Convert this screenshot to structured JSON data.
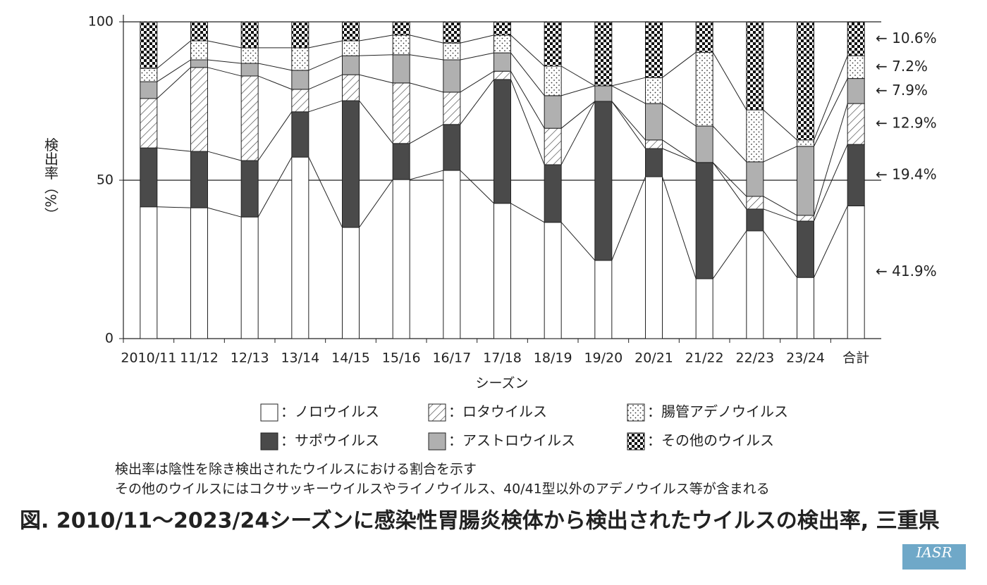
{
  "chart_data": {
    "type": "stacked_bar",
    "title": "図. 2010/11〜2023/24シーズンに感染性胃腸炎検体から検出されたウイルスの検出率, 三重県",
    "x_label": "シーズン",
    "y_label": "検出率（%）",
    "notes": [
      "検出率は陰性を除き検出されたウイルスにおける割合を示す",
      "その他のウイルスにはコクサッキーウイルスやライノウイルス、40/41型以外のアデノウイルス等が含まれる"
    ],
    "categories": [
      "2010/11",
      "11/12",
      "12/13",
      "13/14",
      "14/15",
      "15/16",
      "16/17",
      "17/18",
      "18/19",
      "19/20",
      "20/21",
      "21/22",
      "22/23",
      "23/24",
      "合計"
    ],
    "series": [
      {
        "name": "：ノロウイルス",
        "color": "#ffffff",
        "pattern": "solid",
        "values": [
          41.6,
          41.3,
          38.4,
          57.3,
          35.1,
          50.2,
          53.1,
          42.7,
          36.7,
          24.7,
          51.1,
          18.9,
          34.0,
          19.3,
          41.9
        ],
        "value_labels": [
          null,
          null,
          null,
          null,
          null,
          null,
          null,
          null,
          null,
          null,
          null,
          null,
          null,
          null,
          "← 41.9%"
        ]
      },
      {
        "name": "：サポウイルス",
        "color": "#4a4a4a",
        "pattern": "solid",
        "values": [
          18.6,
          17.8,
          17.8,
          14.3,
          40.0,
          11.4,
          14.5,
          39.1,
          18.2,
          50.2,
          8.9,
          36.7,
          6.9,
          17.8,
          19.4
        ],
        "value_labels": [
          null,
          null,
          null,
          null,
          null,
          null,
          null,
          null,
          null,
          null,
          null,
          null,
          null,
          null,
          "← 19.4%"
        ]
      },
      {
        "name": "：ロタウイルス",
        "color": "#ffffff",
        "pattern": "hatch",
        "values": [
          15.6,
          26.5,
          26.7,
          7.1,
          8.2,
          19.1,
          10.2,
          2.6,
          11.5,
          0,
          2.7,
          0,
          4.0,
          1.8,
          12.9
        ],
        "value_labels": [
          null,
          null,
          null,
          null,
          null,
          null,
          null,
          null,
          null,
          null,
          null,
          null,
          null,
          null,
          "← 12.9%"
        ]
      },
      {
        "name": "：アストロウイルス",
        "color": "#b0b0b0",
        "pattern": "solid",
        "values": [
          5.3,
          2.4,
          4.0,
          6.0,
          6.0,
          8.9,
          10.2,
          5.8,
          10.3,
          4.9,
          11.5,
          11.5,
          10.9,
          21.8,
          7.9
        ],
        "value_labels": [
          null,
          null,
          null,
          null,
          null,
          null,
          null,
          null,
          null,
          null,
          null,
          null,
          null,
          null,
          "← 7.9%"
        ]
      },
      {
        "name": "：腸管アデノウイルス",
        "color": "#ffffff",
        "pattern": "dots",
        "values": [
          4.2,
          6.0,
          4.9,
          7.1,
          4.7,
          6.2,
          5.3,
          5.6,
          9.3,
          0,
          8.2,
          23.3,
          16.4,
          2.0,
          7.2
        ],
        "value_labels": [
          null,
          null,
          null,
          null,
          null,
          null,
          null,
          null,
          null,
          null,
          null,
          null,
          null,
          null,
          "← 7.2%"
        ]
      },
      {
        "name": "：その他のウイルス",
        "color": "#111111",
        "pattern": "checker",
        "values": [
          14.7,
          6.0,
          8.2,
          8.2,
          6.0,
          4.2,
          6.7,
          4.2,
          14.0,
          20.2,
          17.6,
          9.6,
          27.8,
          37.3,
          10.6
        ],
        "value_labels": [
          null,
          null,
          null,
          null,
          null,
          null,
          null,
          null,
          null,
          null,
          null,
          null,
          null,
          null,
          "← 10.6%"
        ]
      }
    ],
    "ylim": [
      0,
      100
    ],
    "yticks": [
      0,
      50,
      100
    ],
    "grid": true
  },
  "logo": "IASR"
}
